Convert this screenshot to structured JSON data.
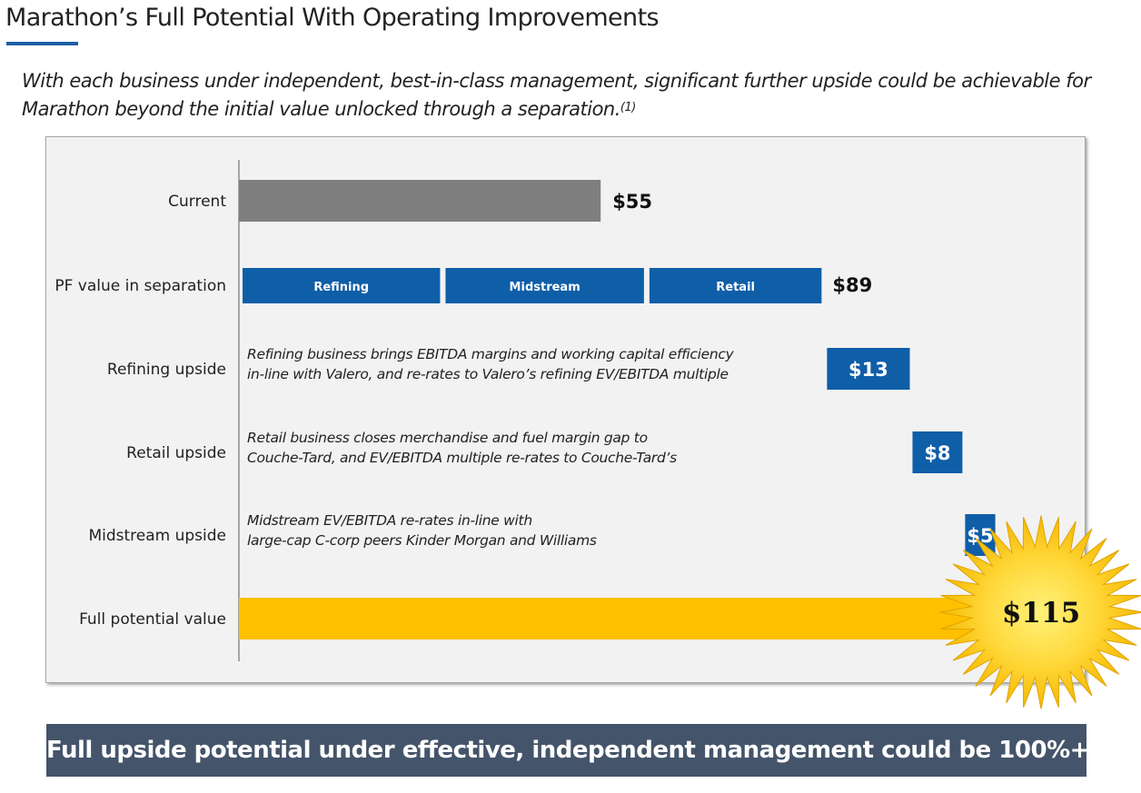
{
  "page": {
    "title": "Marathon’s Full Potential With Operating Improvements",
    "subtitle_line1": "With each business under independent, best-in-class management, significant further upside could be achievable for",
    "subtitle_line2": "Marathon beyond the initial value unlocked through a separation.",
    "subtitle_footnote": "(1)",
    "banner": "Full upside potential under effective, independent management could be 100%+"
  },
  "colors": {
    "current": "#7f7f7f",
    "segment": "#0f5ea8",
    "upside": "#0f5ea8",
    "full_potential": "#ffc000",
    "burst_outer": "#f5b800",
    "burst_inner": "#fff27a"
  },
  "chart_data": {
    "type": "bar",
    "subtype": "horizontal waterfall",
    "categories": [
      "Current",
      "PF value in separation",
      "Refining upside",
      "Retail upside",
      "Midstream upside",
      "Full potential value"
    ],
    "current": {
      "value": 55,
      "label": "$55"
    },
    "pf_separation": {
      "value": 89,
      "label": "$89",
      "segments": [
        {
          "name": "Refining",
          "value": 31
        },
        {
          "name": "Midstream",
          "value": 31
        },
        {
          "name": "Retail",
          "value": 27
        }
      ]
    },
    "upsides": [
      {
        "name": "Refining upside",
        "value": 13,
        "label": "$13",
        "note_line1": "Refining business brings EBITDA margins and working capital efficiency",
        "note_line2": "in-line with Valero, and re-rates to Valero’s refining EV/EBITDA multiple"
      },
      {
        "name": "Retail upside",
        "value": 8,
        "label": "$8",
        "note_line1": "Retail business closes merchandise and fuel margin gap to",
        "note_line2": "Couche-Tard, and EV/EBITDA multiple re-rates to Couche-Tard’s"
      },
      {
        "name": "Midstream upside",
        "value": 5,
        "label": "$5",
        "note_line1": "Midstream EV/EBITDA re-rates in-line with",
        "note_line2": "large-cap C-corp peers Kinder Morgan and Williams"
      }
    ],
    "full_potential": {
      "value": 115,
      "label": "$115"
    }
  }
}
